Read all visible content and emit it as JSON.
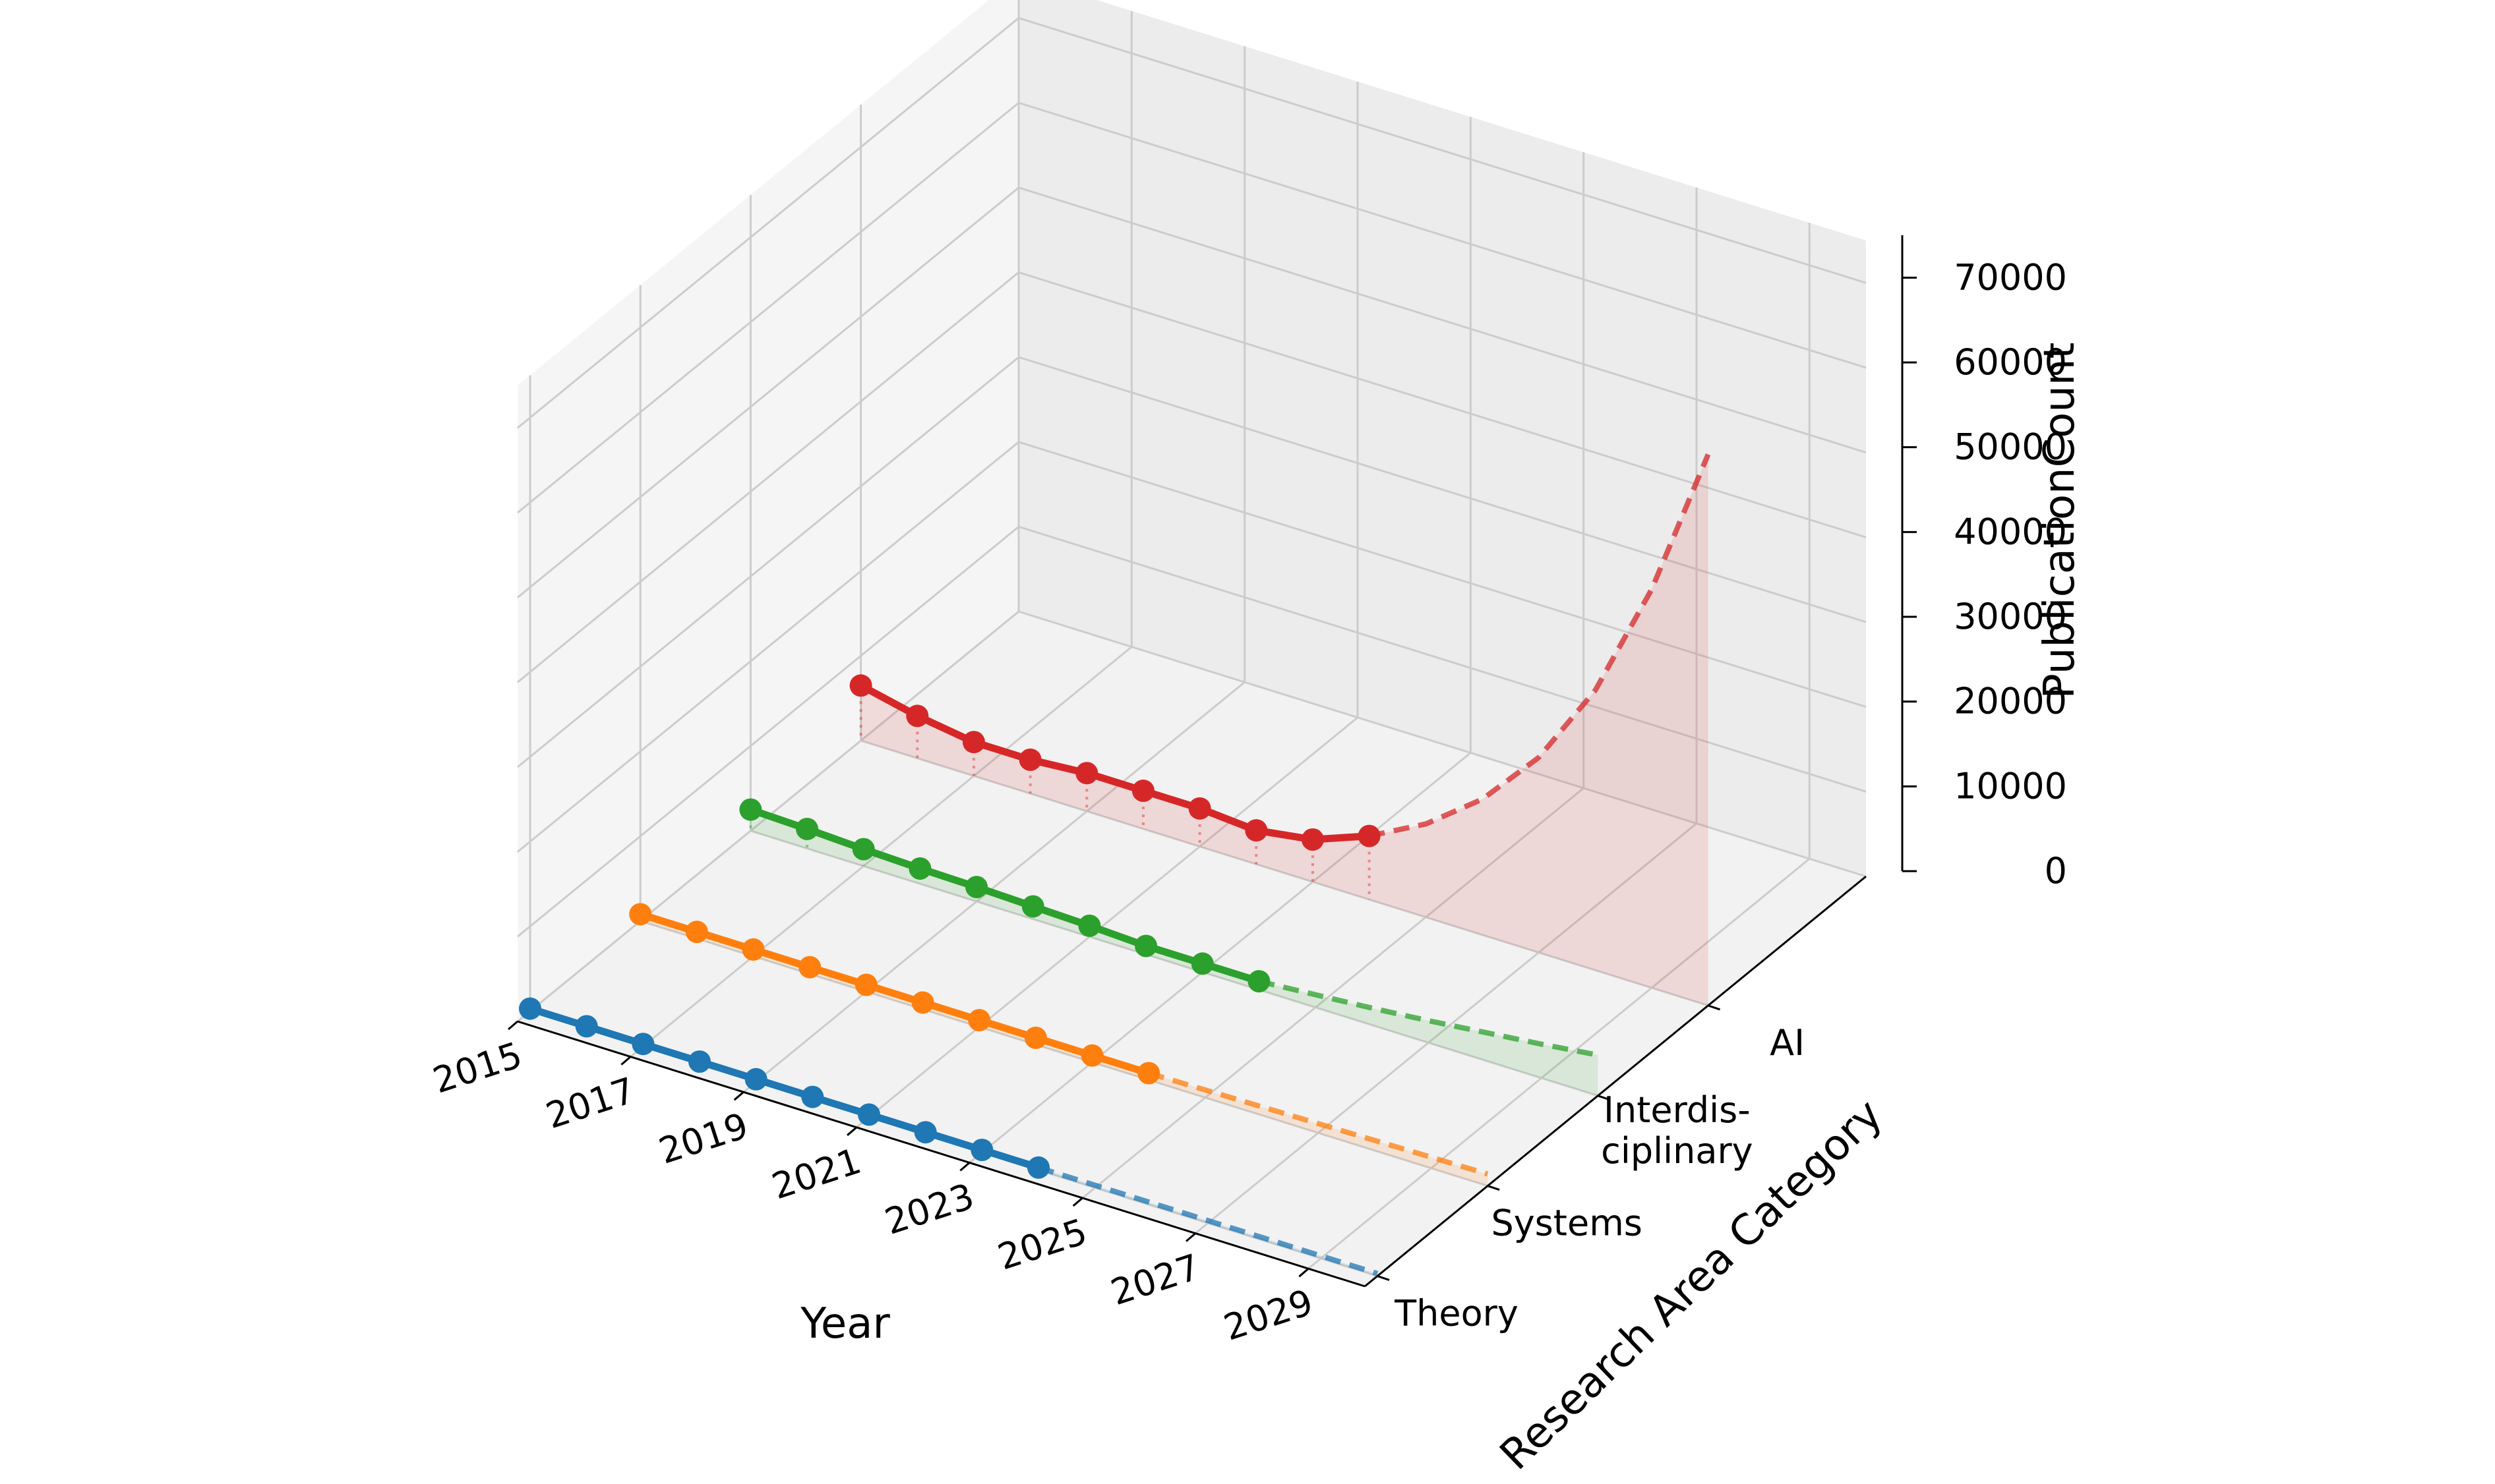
{
  "chart_data": {
    "type": "line",
    "projection": "3d",
    "xlabel": "Year",
    "ylabel": "Research Area Category",
    "zlabel": "PublicationCount",
    "x_ticks": [
      "2015",
      "2017",
      "2019",
      "2021",
      "2023",
      "2025",
      "2027",
      "2029"
    ],
    "y_categories": [
      "Theory",
      "Systems",
      "Interdis-\nciplinary",
      "AI"
    ],
    "z_ticks": [
      "0",
      "10000",
      "20000",
      "30000",
      "40000",
      "50000",
      "60000",
      "70000"
    ],
    "xlim": [
      2015,
      2030
    ],
    "zlim": [
      0,
      75000
    ],
    "grid": true,
    "series": [
      {
        "category": "Theory",
        "color": "#1f77b4",
        "x": [
          2015,
          2016,
          2017,
          2018,
          2019,
          2020,
          2021,
          2022,
          2023,
          2024
        ],
        "values": [
          300,
          300,
          300,
          300,
          300,
          300,
          300,
          300,
          300,
          300
        ],
        "forecast_x": [
          2024,
          2025,
          2026,
          2027,
          2028,
          2029,
          2030
        ],
        "forecast_values": [
          300,
          300,
          300,
          300,
          300,
          300,
          300
        ]
      },
      {
        "category": "Systems",
        "color": "#ff7f0e",
        "x": [
          2015,
          2016,
          2017,
          2018,
          2019,
          2020,
          2021,
          2022,
          2023,
          2024
        ],
        "values": [
          800,
          800,
          800,
          800,
          800,
          800,
          800,
          800,
          800,
          800
        ],
        "forecast_x": [
          2024,
          2025,
          2026,
          2027,
          2028,
          2029,
          2030
        ],
        "forecast_values": [
          800,
          900,
          1000,
          1100,
          1200,
          1300,
          1400
        ]
      },
      {
        "category": "Interdis-\nciplinary",
        "color": "#2ca02c",
        "x": [
          2015,
          2016,
          2017,
          2018,
          2019,
          2020,
          2021,
          2022,
          2023,
          2024
        ],
        "values": [
          2500,
          2300,
          2000,
          1800,
          1700,
          1500,
          1300,
          1000,
          1000,
          1000
        ],
        "forecast_x": [
          2024,
          2025,
          2026,
          2027,
          2028,
          2029,
          2030
        ],
        "forecast_values": [
          1000,
          1500,
          2000,
          2600,
          3300,
          4000,
          4800
        ]
      },
      {
        "category": "AI",
        "color": "#d62728",
        "x": [
          2015,
          2016,
          2017,
          2018,
          2019,
          2020,
          2021,
          2022,
          2023,
          2024
        ],
        "values": [
          6500,
          5000,
          4000,
          4000,
          4500,
          4500,
          4500,
          4000,
          5000,
          7500
        ],
        "forecast_x": [
          2024,
          2025,
          2026,
          2027,
          2028,
          2029,
          2030
        ],
        "forecast_values": [
          7500,
          11000,
          16000,
          23000,
          33000,
          47000,
          65000
        ]
      }
    ]
  }
}
